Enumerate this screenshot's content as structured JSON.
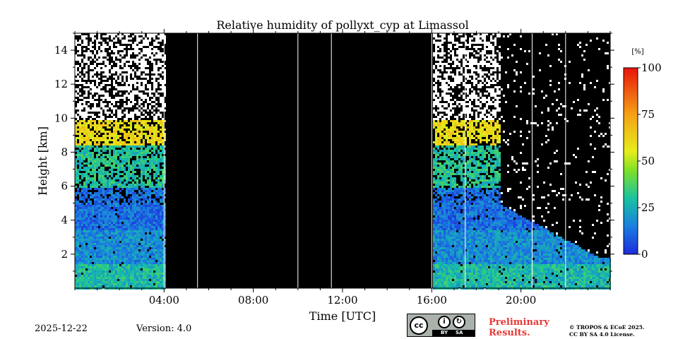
{
  "chart_data": {
    "type": "heatmap",
    "title": "Relative humidity of pollyxt_cyp at Limassol",
    "xlabel": "Time [UTC]",
    "ylabel": "Height [km]",
    "xlim_hours": [
      0,
      24
    ],
    "ylim_km": [
      0,
      15
    ],
    "x_ticks": [
      {
        "hour": 4,
        "label": "04:00"
      },
      {
        "hour": 8,
        "label": "08:00"
      },
      {
        "hour": 12,
        "label": "12:00"
      },
      {
        "hour": 16,
        "label": "16:00"
      },
      {
        "hour": 20,
        "label": "20:00"
      }
    ],
    "y_ticks": [
      {
        "km": 2,
        "label": "2"
      },
      {
        "km": 4,
        "label": "4"
      },
      {
        "km": 6,
        "label": "6"
      },
      {
        "km": 8,
        "label": "8"
      },
      {
        "km": 10,
        "label": "10"
      },
      {
        "km": 12,
        "label": "12"
      },
      {
        "km": 14,
        "label": "14"
      }
    ],
    "colorbar": {
      "unit": "[%]",
      "range": [
        0,
        100
      ],
      "ticks": [
        "0",
        "25",
        "50",
        "75",
        "100"
      ],
      "tick_values": [
        0,
        25,
        50,
        75,
        100
      ]
    },
    "no_data_intervals_hours": [
      [
        4.0,
        16.0
      ]
    ],
    "profile_gap_lines_hours": [
      5.5,
      10.0,
      11.5,
      17.5,
      20.5,
      22.0
    ],
    "rh_profile_layers": [
      {
        "from_km": 0,
        "to_km": 1.5,
        "rh_percent": 28
      },
      {
        "from_km": 1.5,
        "to_km": 3.5,
        "rh_percent": 18
      },
      {
        "from_km": 3.5,
        "to_km": 6,
        "rh_percent": 12
      },
      {
        "from_km": 6,
        "to_km": 8.5,
        "rh_percent": 30
      },
      {
        "from_km": 8.5,
        "to_km": 10,
        "rh_percent": 60
      },
      {
        "from_km": 10,
        "to_km": 15,
        "rh_percent": null
      }
    ]
  },
  "footer": {
    "date": "2025-12-22",
    "version": "Version: 4.0",
    "preliminary_line1": "Preliminary",
    "preliminary_line2": "Results.",
    "copyright_line1": "© TROPOS & ECoE 2025.",
    "copyright_line2": "CC BY SA 4.0 License."
  },
  "license_badge": {
    "cc": "cc",
    "by": "BY",
    "sa": "SA"
  },
  "colors": {
    "no_data": "#000000",
    "preliminary": "#e53935"
  }
}
